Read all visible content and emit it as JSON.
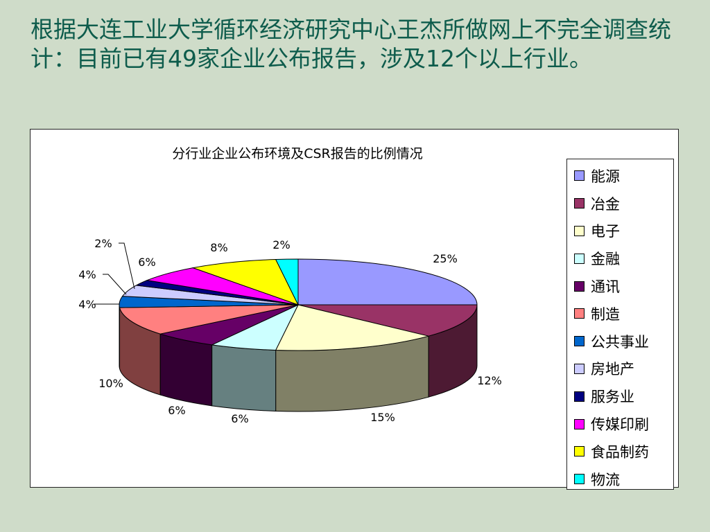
{
  "heading": "根据大连工业大学循环经济研究中心王杰所做网上不完全调查统计：目前已有49家企业公布报告，涉及12个以上行业。",
  "chart_data": {
    "type": "pie",
    "title": "分行业企业公布环境及CSR报告的比例情况",
    "legend_position": "right",
    "slices": [
      {
        "label": "能源",
        "value": 25,
        "text": "25%",
        "color": "#9999ff"
      },
      {
        "label": "冶金",
        "value": 12,
        "text": "12%",
        "color": "#993366"
      },
      {
        "label": "电子",
        "value": 15,
        "text": "15%",
        "color": "#ffffcc"
      },
      {
        "label": "金融",
        "value": 6,
        "text": "6%",
        "color": "#ccffff"
      },
      {
        "label": "通讯",
        "value": 6,
        "text": "6%",
        "color": "#660066"
      },
      {
        "label": "制造",
        "value": 10,
        "text": "10%",
        "color": "#ff8080"
      },
      {
        "label": "公共事业",
        "value": 4,
        "text": "4%",
        "color": "#0066cc"
      },
      {
        "label": "房地产",
        "value": 4,
        "text": "4%",
        "color": "#ccccff"
      },
      {
        "label": "服务业",
        "value": 2,
        "text": "2%",
        "color": "#000080"
      },
      {
        "label": "传媒印刷",
        "value": 6,
        "text": "6%",
        "color": "#ff00ff"
      },
      {
        "label": "食品制药",
        "value": 8,
        "text": "8%",
        "color": "#ffff00"
      },
      {
        "label": "物流",
        "value": 2,
        "text": "2%",
        "color": "#00ffff"
      }
    ]
  }
}
